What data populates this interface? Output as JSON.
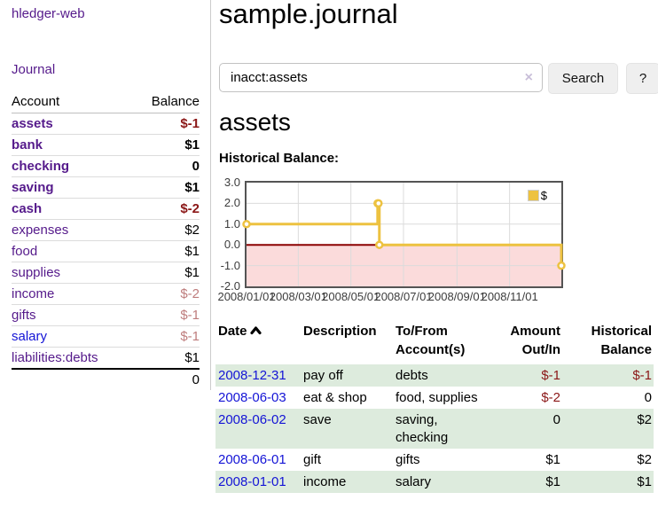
{
  "app": {
    "brand": "hledger-web",
    "nav_journal": "Journal"
  },
  "colors": {
    "link_purple": "#551A8B",
    "link_blue": "#1414D6",
    "negative": "#8B1717",
    "negative_dim": "#BE7C7C",
    "row_stripe": "#DDEBDD",
    "series_gold": "#EDC240",
    "negative_region": "#FBDBDB",
    "zero_line": "#8B0000"
  },
  "sidebar": {
    "table": {
      "account_header": "Account",
      "balance_header": "Balance",
      "accounts": [
        {
          "name": "assets",
          "indent": 1,
          "bold": true,
          "balance": "$-1",
          "negative": "strong"
        },
        {
          "name": "bank",
          "indent": 2,
          "bold": true,
          "balance": "$1"
        },
        {
          "name": "checking",
          "indent": 3,
          "bold": true,
          "balance": "0"
        },
        {
          "name": "saving",
          "indent": 3,
          "bold": true,
          "balance": "$1"
        },
        {
          "name": "cash",
          "indent": 2,
          "bold": true,
          "balance": "$-2",
          "negative": "strong"
        },
        {
          "name": "expenses",
          "indent": 1,
          "bold": false,
          "balance": "$2"
        },
        {
          "name": "food",
          "indent": 2,
          "bold": false,
          "balance": "$1"
        },
        {
          "name": "supplies",
          "indent": 2,
          "bold": false,
          "balance": "$1"
        },
        {
          "name": "income",
          "indent": 1,
          "bold": false,
          "balance": "$-2",
          "negative": "dim"
        },
        {
          "name": "gifts",
          "indent": 2,
          "bold": false,
          "balance": "$-1",
          "negative": "dim"
        },
        {
          "name": "salary",
          "indent": 2,
          "bold": false,
          "balance": "$-1",
          "negative": "dim",
          "unvisited": true
        },
        {
          "name": "liabilities:debts",
          "indent": 1,
          "bold": false,
          "balance": "$1"
        }
      ],
      "total": "0"
    }
  },
  "main": {
    "title": "sample.journal",
    "search": {
      "value": "inacct:assets",
      "clear_icon": "×",
      "button_label": "Search",
      "help_label": "?"
    },
    "account_heading": "assets",
    "chart_label": "Historical Balance:"
  },
  "chart_data": {
    "type": "line",
    "title": "Historical Balance",
    "step": true,
    "series": [
      {
        "name": "$",
        "color": "#EDC240",
        "points": [
          {
            "date": "2008-01-01",
            "value": 1
          },
          {
            "date": "2008-06-01",
            "value": 2
          },
          {
            "date": "2008-06-02",
            "value": 2
          },
          {
            "date": "2008-06-03",
            "value": 0
          },
          {
            "date": "2008-12-31",
            "value": -1
          }
        ]
      }
    ],
    "x_range": [
      "2008-01-01",
      "2008-12-31"
    ],
    "ylim": [
      -2,
      3
    ],
    "yticks": [
      "3.0",
      "2.0",
      "1.0",
      "0.0",
      "-1.0",
      "-2.0"
    ],
    "xticks": [
      "2008/01/01",
      "2008/03/01",
      "2008/05/01",
      "2008/07/01",
      "2008/09/01",
      "2008/11/01"
    ],
    "legend": {
      "label": "$",
      "position": "top-right"
    },
    "grid": true,
    "negative_region": true
  },
  "register": {
    "headers": [
      "Date",
      "Description",
      "To/From Account(s)",
      "Amount Out/In",
      "Historical Balance"
    ],
    "sort": {
      "column": "Date",
      "direction": "ascending"
    },
    "rows": [
      {
        "date": "2008-12-31",
        "description": "pay off",
        "accounts": "debts",
        "amount": "$-1",
        "balance": "$-1",
        "amount_negative": true,
        "balance_negative": true
      },
      {
        "date": "2008-06-03",
        "description": "eat & shop",
        "accounts": "food, supplies",
        "amount": "$-2",
        "balance": "0",
        "amount_negative": true
      },
      {
        "date": "2008-06-02",
        "description": "save",
        "accounts": "saving, checking",
        "amount": "0",
        "balance": "$2"
      },
      {
        "date": "2008-06-01",
        "description": "gift",
        "accounts": "gifts",
        "amount": "$1",
        "balance": "$2"
      },
      {
        "date": "2008-01-01",
        "description": "income",
        "accounts": "salary",
        "amount": "$1",
        "balance": "$1"
      }
    ]
  }
}
